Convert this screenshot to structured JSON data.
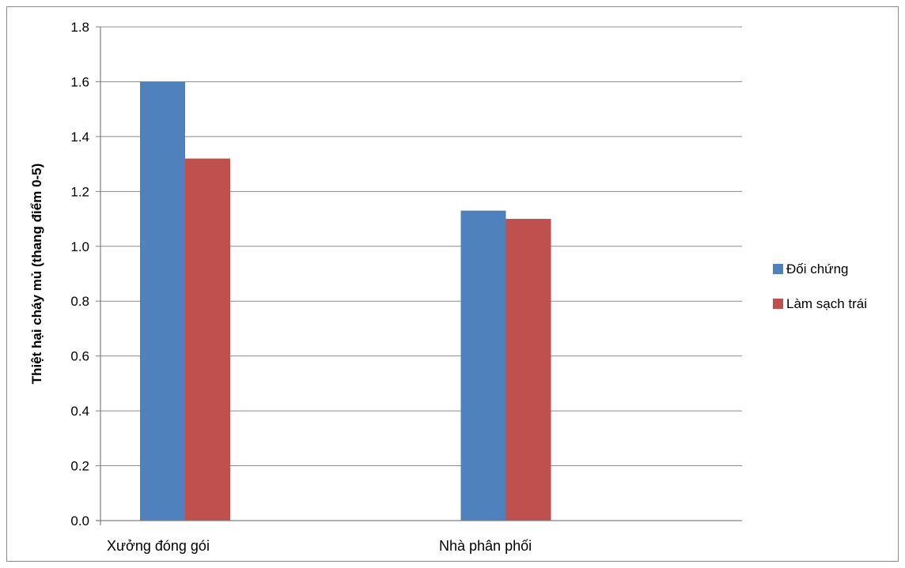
{
  "chart_data": {
    "type": "bar",
    "title": "",
    "xlabel": "",
    "ylabel": "Thiệt hại cháy mủ (thang điểm 0-5)",
    "categories": [
      "Xưởng đóng gói",
      "Nhà phân phối"
    ],
    "series": [
      {
        "name": "Đối chứng",
        "values": [
          1.6,
          1.13
        ],
        "color": "#4f81bd"
      },
      {
        "name": "Làm sạch trái",
        "values": [
          1.32,
          1.1
        ],
        "color": "#c0504d"
      }
    ],
    "ylim": [
      0,
      1.8
    ],
    "yticks": [
      "0.0",
      "0.2",
      "0.4",
      "0.6",
      "0.8",
      "1.0",
      "1.2",
      "1.4",
      "1.6",
      "1.8"
    ],
    "grid": true,
    "legend_position": "right"
  }
}
